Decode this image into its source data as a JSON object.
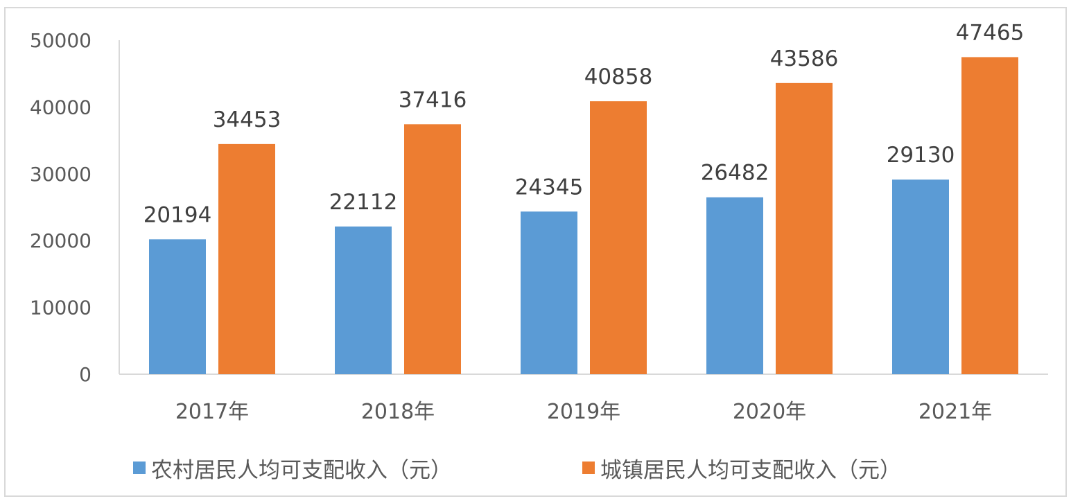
{
  "chart_data": {
    "type": "bar",
    "categories": [
      "2017年",
      "2018年",
      "2019年",
      "2020年",
      "2021年"
    ],
    "series": [
      {
        "name": "农村居民人均可支配收入（元）",
        "values": [
          20194,
          22112,
          24345,
          26482,
          29130
        ],
        "color": "#5b9bd5"
      },
      {
        "name": "城镇居民人均可支配收入（元）",
        "values": [
          34453,
          37416,
          40858,
          43586,
          47465
        ],
        "color": "#ed7d31"
      }
    ],
    "yticks": [
      "0",
      "10000",
      "20000",
      "30000",
      "40000",
      "50000"
    ],
    "ylim": [
      0,
      50000
    ],
    "grid": false,
    "legend_position": "bottom"
  }
}
